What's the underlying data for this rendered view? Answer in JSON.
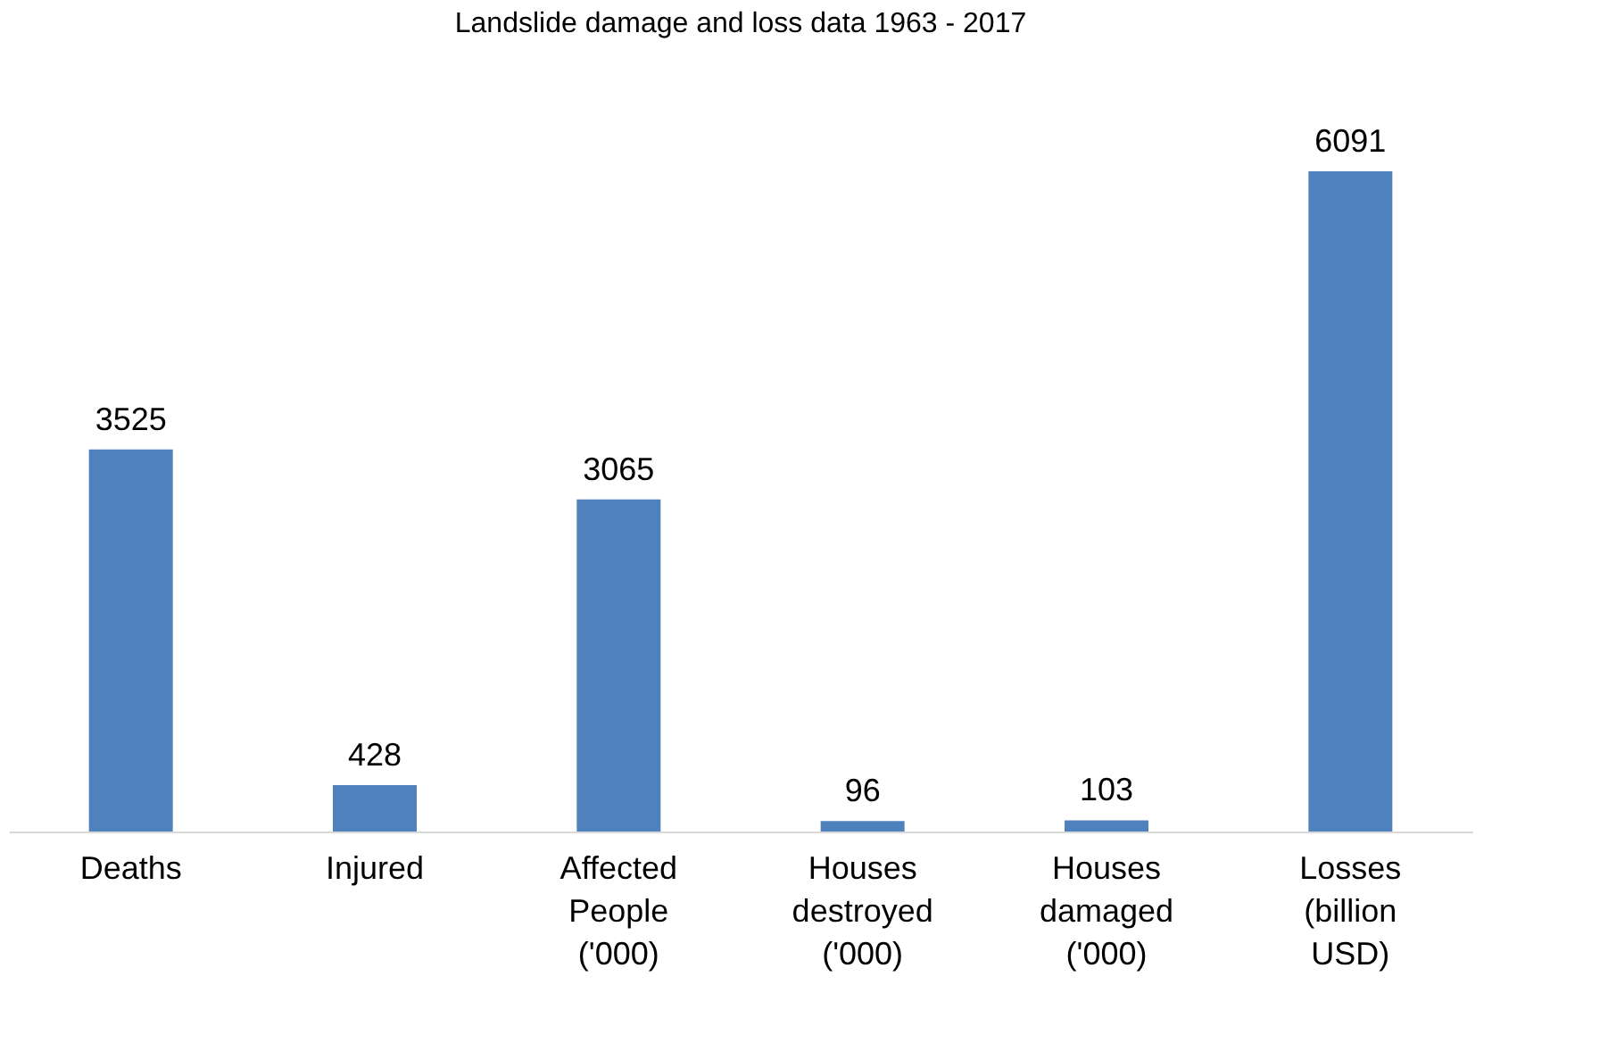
{
  "chart_data": {
    "type": "bar",
    "title": "Landslide damage and loss data 1963 - 2017",
    "categories": [
      "Deaths",
      "Injured",
      "Affected\nPeople\n('000)",
      "Houses\ndestroyed\n('000)",
      "Houses\ndamaged\n('000)",
      "Losses\n(billion\nUSD)"
    ],
    "values": [
      3525,
      428,
      3065,
      96,
      103,
      6091
    ],
    "color": "#4f81bd",
    "data_labels": true
  }
}
